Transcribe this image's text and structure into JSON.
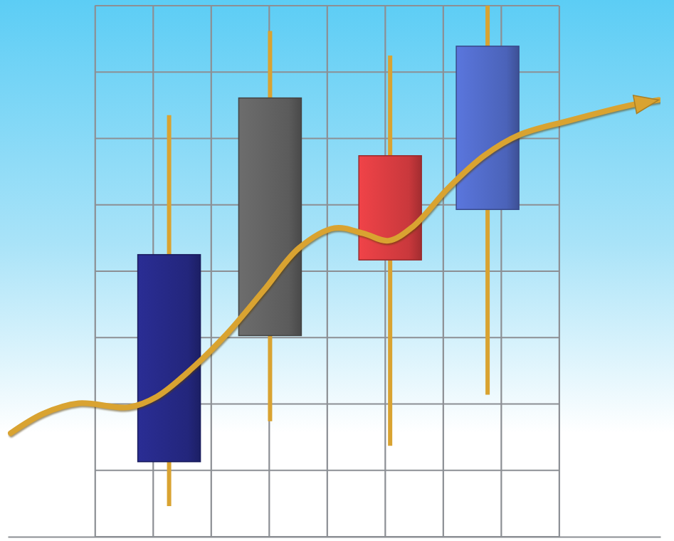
{
  "chart_data": {
    "type": "candlestick",
    "x": [
      1.28,
      3.02,
      5.09,
      6.77
    ],
    "open": [
      1.13,
      3.03,
      5.74,
      4.93
    ],
    "high": [
      6.35,
      7.62,
      7.25,
      8.0
    ],
    "low": [
      0.46,
      1.74,
      1.37,
      2.14
    ],
    "close": [
      4.25,
      6.61,
      4.17,
      7.39
    ],
    "colors": [
      "#23267c",
      "#5b5b5b",
      "#c9383c",
      "#4b63b9"
    ],
    "series": [
      {
        "type": "line",
        "color": "#d9a331",
        "x": [
          -1.45,
          -0.9,
          -0.28,
          0.58,
          1.07,
          1.68,
          2.29,
          2.91,
          3.52,
          4.13,
          4.63,
          5.06,
          5.48,
          6.1,
          6.71,
          7.33,
          8.18,
          9.17,
          9.72
        ],
        "values": [
          1.56,
          1.85,
          2.01,
          1.95,
          2.11,
          2.54,
          3.07,
          3.71,
          4.35,
          4.65,
          4.57,
          4.46,
          4.67,
          5.26,
          5.74,
          6.06,
          6.27,
          6.49,
          6.58
        ]
      }
    ],
    "xlim": [
      -1.5,
      9.75
    ],
    "ylim": [
      0,
      8
    ],
    "xticks": [
      0,
      1,
      2,
      3,
      4,
      5,
      6,
      7,
      8
    ],
    "yticks": [
      0,
      1,
      2,
      3,
      4,
      5,
      6,
      7,
      8
    ],
    "grid": true,
    "tick_labels": false
  }
}
